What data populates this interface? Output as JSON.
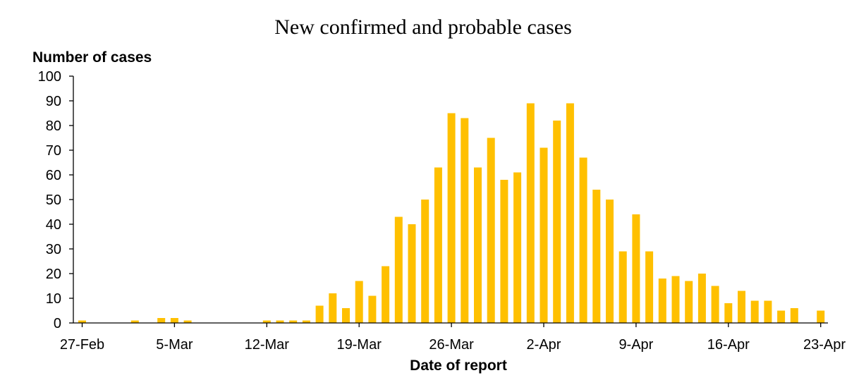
{
  "chart_data": {
    "type": "bar",
    "title": "New confirmed and probable cases",
    "ylabel": "Number of cases",
    "xlabel": "Date of report",
    "ylim": [
      0,
      100
    ],
    "yticks": [
      0,
      10,
      20,
      30,
      40,
      50,
      60,
      70,
      80,
      90,
      100
    ],
    "grid": false,
    "bar_color": "#FFC000",
    "xtick_labels": [
      {
        "index": 0,
        "label": "27-Feb"
      },
      {
        "index": 7,
        "label": "5-Mar"
      },
      {
        "index": 14,
        "label": "12-Mar"
      },
      {
        "index": 21,
        "label": "19-Mar"
      },
      {
        "index": 28,
        "label": "26-Mar"
      },
      {
        "index": 35,
        "label": "2-Apr"
      },
      {
        "index": 42,
        "label": "9-Apr"
      },
      {
        "index": 49,
        "label": "16-Apr"
      },
      {
        "index": 56,
        "label": "23-Apr"
      }
    ],
    "categories": [
      "27-Feb",
      "28-Feb",
      "29-Feb",
      "1-Mar",
      "2-Mar",
      "3-Mar",
      "4-Mar",
      "5-Mar",
      "6-Mar",
      "7-Mar",
      "8-Mar",
      "9-Mar",
      "10-Mar",
      "11-Mar",
      "12-Mar",
      "13-Mar",
      "14-Mar",
      "15-Mar",
      "16-Mar",
      "17-Mar",
      "18-Mar",
      "19-Mar",
      "20-Mar",
      "21-Mar",
      "22-Mar",
      "23-Mar",
      "24-Mar",
      "25-Mar",
      "26-Mar",
      "27-Mar",
      "28-Mar",
      "29-Mar",
      "30-Mar",
      "31-Mar",
      "1-Apr",
      "2-Apr",
      "3-Apr",
      "4-Apr",
      "5-Apr",
      "6-Apr",
      "7-Apr",
      "8-Apr",
      "9-Apr",
      "10-Apr",
      "11-Apr",
      "12-Apr",
      "13-Apr",
      "14-Apr",
      "15-Apr",
      "16-Apr",
      "17-Apr",
      "18-Apr",
      "19-Apr",
      "20-Apr",
      "21-Apr",
      "22-Apr",
      "23-Apr"
    ],
    "values": [
      1,
      0,
      0,
      0,
      1,
      0,
      2,
      2,
      1,
      0,
      0,
      0,
      0,
      0,
      1,
      1,
      1,
      1,
      7,
      12,
      6,
      17,
      11,
      23,
      43,
      40,
      50,
      63,
      85,
      83,
      63,
      75,
      58,
      61,
      89,
      71,
      82,
      89,
      67,
      54,
      50,
      29,
      44,
      29,
      18,
      19,
      17,
      20,
      15,
      8,
      13,
      9,
      9,
      5,
      6,
      0,
      5
    ]
  }
}
